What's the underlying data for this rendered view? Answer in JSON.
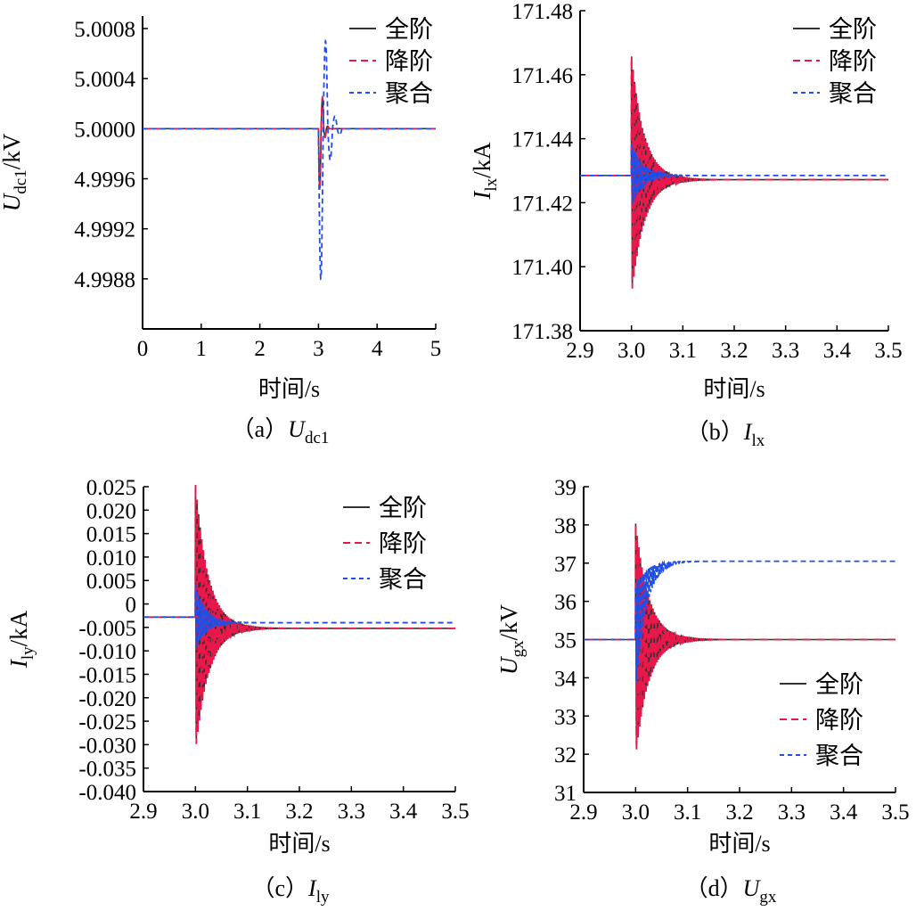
{
  "legend": {
    "full": "全阶",
    "reduced": "降阶",
    "aggregate": "聚合"
  },
  "colors": {
    "full": "#333333",
    "reduced": "#e8194a",
    "aggregate": "#1f4fe8"
  },
  "chart_data": [
    {
      "id": "a",
      "type": "line",
      "caption": "（a）Udc1",
      "caption_prefix": "（a）",
      "ylabel_var": "U",
      "ylabel_sub": "dc1",
      "ylabel_unit": "/kV",
      "xlabel": "时间/s",
      "caption_var": "U",
      "caption_sub": "dc1",
      "xlim": [
        0,
        5
      ],
      "ylim": [
        4.9984,
        5.0009
      ],
      "xticks": [
        0,
        1,
        2,
        3,
        4,
        5
      ],
      "xtick_labels": [
        "0",
        "1",
        "2",
        "3",
        "4",
        "5"
      ],
      "yticks": [
        4.9988,
        4.9992,
        4.9996,
        5.0,
        5.0004,
        5.0008
      ],
      "ytick_labels": [
        "4.9988",
        "4.9992",
        "4.9996",
        "5.0000",
        "5.0004",
        "5.0008"
      ],
      "legend_position": "top-right",
      "series": [
        {
          "key": "full",
          "steady_before": 5.0,
          "steady_after": 5.0,
          "t0": 3.0,
          "overshoot": [
            -0.00048,
            0.00024,
            -6e-05,
            2e-05
          ],
          "osc_kind": "slow"
        },
        {
          "key": "reduced",
          "steady_before": 5.0,
          "steady_after": 5.0,
          "t0": 3.0,
          "overshoot": [
            -0.0005,
            0.00025,
            -7e-05,
            2e-05
          ],
          "osc_kind": "slow"
        },
        {
          "key": "aggregate",
          "steady_before": 5.0,
          "steady_after": 5.0,
          "t0": 3.0,
          "overshoot": [
            -0.0012,
            0.0007,
            -0.00025,
            0.0001,
            -5e-05
          ],
          "osc_kind": "slow_big"
        }
      ]
    },
    {
      "id": "b",
      "type": "line",
      "caption_prefix": "（b）",
      "caption_var": "I",
      "caption_sub": "lx",
      "ylabel_var": "I",
      "ylabel_sub": "lx",
      "ylabel_unit": "/kA",
      "xlabel": "时间/s",
      "xlim": [
        2.9,
        3.5
      ],
      "ylim": [
        171.38,
        171.48
      ],
      "xticks": [
        2.9,
        3.0,
        3.1,
        3.2,
        3.3,
        3.4,
        3.5
      ],
      "xtick_labels": [
        "2.9",
        "3.0",
        "3.1",
        "3.2",
        "3.3",
        "3.4",
        "3.5"
      ],
      "yticks": [
        171.38,
        171.4,
        171.42,
        171.44,
        171.46,
        171.48
      ],
      "ytick_labels": [
        "171.38",
        "171.40",
        "171.42",
        "171.44",
        "171.46",
        "171.48"
      ],
      "legend_position": "top-right",
      "series": [
        {
          "key": "full",
          "steady_before": 171.4285,
          "steady_after": 171.4272,
          "t0": 3.0,
          "amp": 0.038,
          "decay": 0.025
        },
        {
          "key": "reduced",
          "steady_before": 171.4285,
          "steady_after": 171.4272,
          "t0": 3.0,
          "amp": 0.038,
          "decay": 0.025
        },
        {
          "key": "aggregate",
          "steady_before": 171.4285,
          "steady_after": 171.4285,
          "t0": 3.0,
          "amp": 0.01,
          "decay": 0.022
        }
      ]
    },
    {
      "id": "c",
      "type": "line",
      "caption_prefix": "（c）",
      "caption_var": "I",
      "caption_sub": "ly",
      "ylabel_var": "I",
      "ylabel_sub": "ly",
      "ylabel_unit": "/kA",
      "xlabel": "时间/s",
      "xlim": [
        2.9,
        3.5
      ],
      "ylim": [
        -0.04,
        0.025
      ],
      "xticks": [
        2.9,
        3.0,
        3.1,
        3.2,
        3.3,
        3.4,
        3.5
      ],
      "xtick_labels": [
        "2.9",
        "3.0",
        "3.1",
        "3.2",
        "3.3",
        "3.4",
        "3.5"
      ],
      "yticks": [
        -0.04,
        -0.035,
        -0.03,
        -0.025,
        -0.02,
        -0.015,
        -0.01,
        -0.005,
        0,
        0.005,
        0.01,
        0.015,
        0.02,
        0.025
      ],
      "ytick_labels": [
        "-0.040",
        "-0.035",
        "-0.030",
        "-0.025",
        "-0.020",
        "-0.015",
        "-0.010",
        "-0.005",
        "0",
        "0.005",
        "0.010",
        "0.015",
        "0.020",
        "0.025"
      ],
      "legend_position": "top-right",
      "series": [
        {
          "key": "full",
          "steady_before": -0.0028,
          "steady_after": -0.0052,
          "t0": 3.0,
          "amp": 0.029,
          "decay": 0.025
        },
        {
          "key": "reduced",
          "steady_before": -0.0028,
          "steady_after": -0.0052,
          "t0": 3.0,
          "amp": 0.029,
          "decay": 0.025
        },
        {
          "key": "aggregate",
          "steady_before": -0.0028,
          "steady_after": -0.004,
          "t0": 3.0,
          "amp": 0.007,
          "decay": 0.02
        }
      ]
    },
    {
      "id": "d",
      "type": "line",
      "caption_prefix": "（d）",
      "caption_var": "U",
      "caption_sub": "gx",
      "ylabel_var": "U",
      "ylabel_sub": "gx",
      "ylabel_unit": "/kV",
      "xlabel": "时间/s",
      "xlim": [
        2.9,
        3.5
      ],
      "ylim": [
        31,
        39
      ],
      "xticks": [
        2.9,
        3.0,
        3.1,
        3.2,
        3.3,
        3.4,
        3.5
      ],
      "xtick_labels": [
        "2.9",
        "3.0",
        "3.1",
        "3.2",
        "3.3",
        "3.4",
        "3.5"
      ],
      "yticks": [
        31,
        32,
        33,
        34,
        35,
        36,
        37,
        38,
        39
      ],
      "ytick_labels": [
        "31",
        "32",
        "33",
        "34",
        "35",
        "36",
        "37",
        "38",
        "39"
      ],
      "legend_position": "bottom-right",
      "series": [
        {
          "key": "full",
          "steady_before": 35.0,
          "steady_after": 35.0,
          "t0": 3.0,
          "amp": 3.1,
          "decay": 0.025
        },
        {
          "key": "reduced",
          "steady_before": 35.0,
          "steady_after": 35.0,
          "t0": 3.0,
          "amp": 3.1,
          "decay": 0.025
        },
        {
          "key": "aggregate",
          "steady_before": 35.0,
          "steady_after": 37.05,
          "t0": 3.0,
          "amp": 1.4,
          "decay": 0.02
        }
      ]
    }
  ]
}
